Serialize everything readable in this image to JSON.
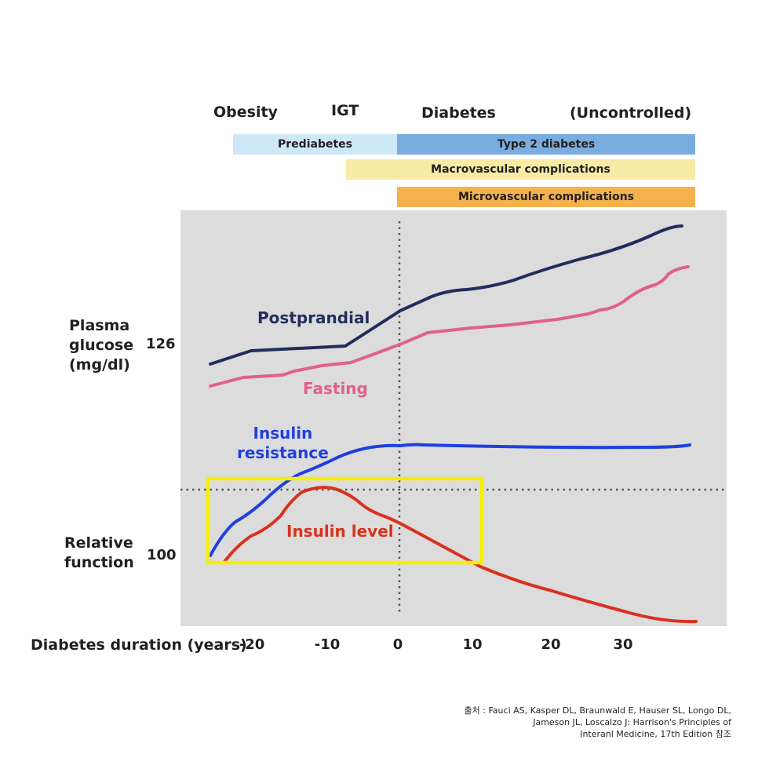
{
  "phases": [
    {
      "label": "Obesity"
    },
    {
      "label": "IGT"
    },
    {
      "label": "Diabetes"
    },
    {
      "label": "(Uncontrolled)"
    }
  ],
  "bars": [
    {
      "label": "Prediabetes",
      "color": "#cde9f8"
    },
    {
      "label": "Type 2 diabetes",
      "color": "#7aaddf"
    },
    {
      "label": "Macrovascular complications",
      "color": "#f8eba6"
    },
    {
      "label": "Microvascular complications",
      "color": "#f3b24e"
    }
  ],
  "y_axis": {
    "upper_label_lines": [
      "Plasma",
      "glucose",
      "(mg/dl)"
    ],
    "upper_value": "126",
    "lower_label_lines": [
      "Relative",
      "function"
    ],
    "lower_value": "100"
  },
  "x_axis": {
    "title": "Diabetes duration (years)",
    "ticks": [
      "-20",
      "-10",
      "0",
      "10",
      "20",
      "30"
    ]
  },
  "curves": {
    "postprandial": {
      "label": "Postprandial",
      "color": "#1f2f5c"
    },
    "fasting": {
      "label": "Fasting",
      "color": "#e0608f"
    },
    "insulin_resistance": {
      "label_lines": [
        "Insulin",
        "resistance"
      ],
      "color": "#1f3fe0"
    },
    "insulin_level": {
      "label": "Insulin level",
      "color": "#d8321f"
    }
  },
  "highlight_color": "#f7ef00",
  "source_lines": [
    "출처 : Fauci AS, Kasper DL, Braunwald E, Hauser SL, Longo DL,",
    "Jameson JL, Loscalzo J: Harrison's Principles of",
    "Interanl Medicine, 17th Edition 참조"
  ]
}
